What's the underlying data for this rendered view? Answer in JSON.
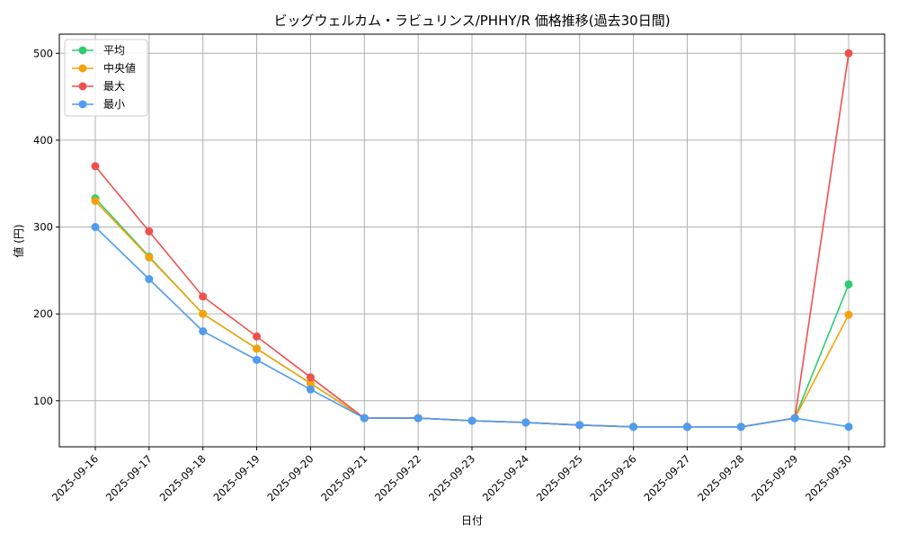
{
  "chart_data": {
    "type": "line",
    "title": "ビッグウェルカム・ラビュリンス/PHHY/R 価格推移(過去30日間)",
    "xlabel": "日付",
    "ylabel": "値 (円)",
    "categories": [
      "2025-09-16",
      "2025-09-17",
      "2025-09-18",
      "2025-09-19",
      "2025-09-20",
      "2025-09-21",
      "2025-09-22",
      "2025-09-23",
      "2025-09-24",
      "2025-09-25",
      "2025-09-26",
      "2025-09-27",
      "2025-09-28",
      "2025-09-29",
      "2025-09-30"
    ],
    "ylim": [
      47,
      522
    ],
    "yticks": [
      100,
      200,
      300,
      400,
      500
    ],
    "grid": true,
    "legend_position": "top-left",
    "series": [
      {
        "name": "平均",
        "color": "#2ecc71",
        "values": [
          333,
          266,
          200,
          160,
          120,
          80,
          80,
          77,
          75,
          72,
          70,
          70,
          70,
          80,
          234
        ]
      },
      {
        "name": "中央値",
        "color": "#f5a30a",
        "values": [
          330,
          265,
          200,
          160,
          120,
          80,
          80,
          77,
          75,
          72,
          70,
          70,
          70,
          80,
          199
        ]
      },
      {
        "name": "最大",
        "color": "#f0504e",
        "values": [
          370,
          295,
          220,
          174,
          127,
          80,
          80,
          77,
          75,
          72,
          70,
          70,
          70,
          80,
          500
        ]
      },
      {
        "name": "最小",
        "color": "#4f9cf0",
        "values": [
          300,
          240,
          180,
          147,
          113,
          80,
          80,
          77,
          75,
          72,
          70,
          70,
          70,
          80,
          70
        ]
      }
    ]
  }
}
